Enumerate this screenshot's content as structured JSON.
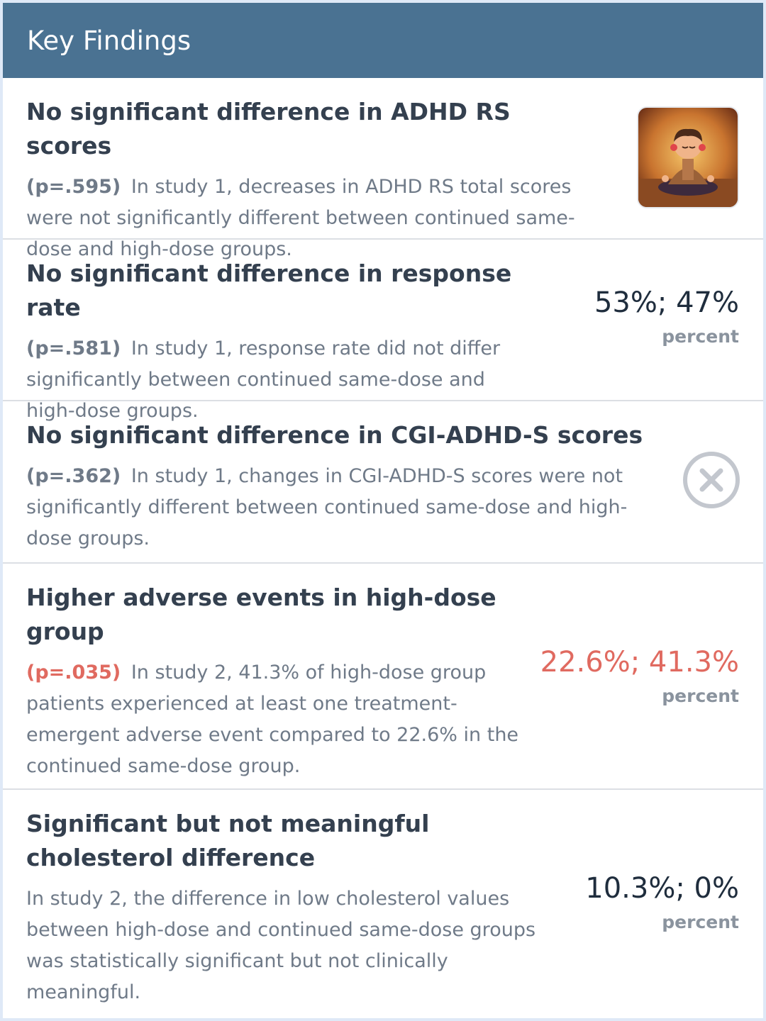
{
  "header": {
    "title": "Key Findings"
  },
  "findings": [
    {
      "title": "No significant difference in ADHD RS scores",
      "p_value": "(p=.595)",
      "description": "In study 1, decreases in ADHD RS total scores were not significantly different between continued same-dose and high-dose groups.",
      "icon": "meditating-child-image"
    },
    {
      "title": "No significant difference in response rate",
      "p_value": "(p=.581)",
      "description": "In study 1, response rate did not differ significantly between continued same-dose and high-dose groups.",
      "stat": "53%; 47%",
      "unit": "percent"
    },
    {
      "title": "No significant difference in CGI-ADHD-S scores",
      "p_value": "(p=.362)",
      "description": "In study 1, changes in CGI-ADHD-S scores were not significantly different between continued same-dose and high-dose groups.",
      "icon": "close-circle-icon"
    },
    {
      "title": "Higher adverse events in high-dose group",
      "p_value": "(p=.035)",
      "description": "In study 2, 41.3% of high-dose group patients experienced at least one treatment-emergent adverse event compared to 22.6% in the continued same-dose group.",
      "stat": "22.6%; 41.3%",
      "unit": "percent"
    },
    {
      "title": "Significant but not meaningful cholesterol difference",
      "description": "In study 2, the difference in low cholesterol values between high-dose and continued same-dose groups was statistically significant but not clinically meaningful.",
      "stat": "10.3%; 0%",
      "unit": "percent"
    }
  ],
  "colors": {
    "header_bg": "#4a7292",
    "significant": "#e06a60",
    "title_text": "#34404f",
    "body_text": "#6f7a88"
  }
}
